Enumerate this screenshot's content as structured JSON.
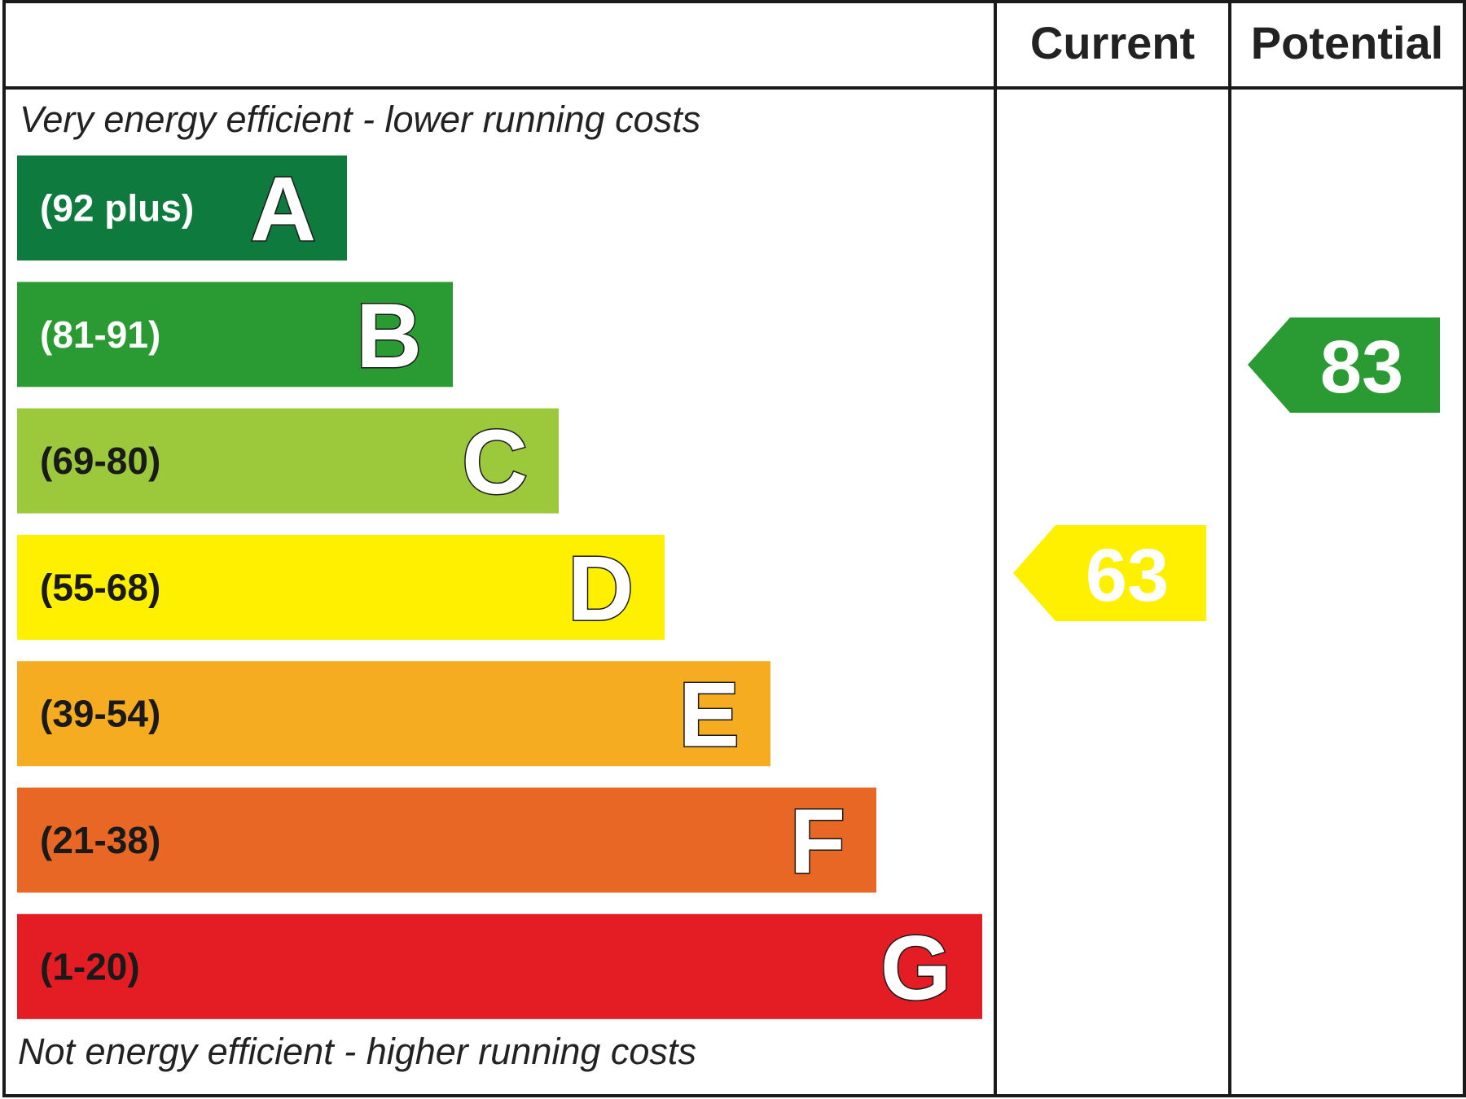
{
  "header": {
    "current_label": "Current",
    "potential_label": "Potential"
  },
  "captions": {
    "top": "Very energy efficient - lower running costs",
    "bottom": "Not energy efficient - higher running costs"
  },
  "bands": [
    {
      "letter": "A",
      "range": "(92 plus)",
      "color": "#0f7a3d",
      "text_color": "#ffffff"
    },
    {
      "letter": "B",
      "range": "(81-91)",
      "color": "#2a9a33",
      "text_color": "#ffffff"
    },
    {
      "letter": "C",
      "range": "(69-80)",
      "color": "#9cc83b",
      "text_color": "#1a1a1a"
    },
    {
      "letter": "D",
      "range": "(55-68)",
      "color": "#fff000",
      "text_color": "#1a1a1a"
    },
    {
      "letter": "E",
      "range": "(39-54)",
      "color": "#f5ac20",
      "text_color": "#1a1a1a"
    },
    {
      "letter": "F",
      "range": "(21-38)",
      "color": "#e96724",
      "text_color": "#1a1a1a"
    },
    {
      "letter": "G",
      "range": "(1-20)",
      "color": "#e31d23",
      "text_color": "#1a1a1a"
    }
  ],
  "current": {
    "score": "63",
    "band": "D",
    "color": "#fff000"
  },
  "potential": {
    "score": "83",
    "band": "B",
    "color": "#2a9a33"
  }
}
